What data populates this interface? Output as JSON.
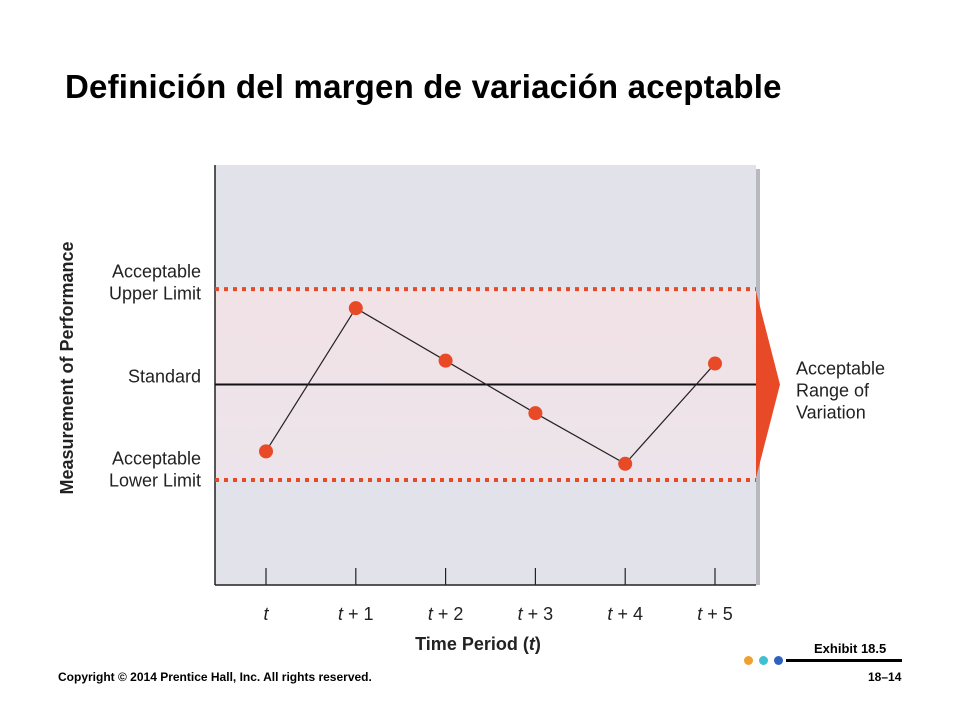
{
  "slide": {
    "title": "Definición del margen de variación aceptable",
    "copyright": "Copyright © 2014 Prentice Hall, Inc. All rights reserved.",
    "page_number": "18–14",
    "exhibit": "Exhibit 18.5",
    "dot_colors": [
      "#f0a030",
      "#40c0d0",
      "#3060c0"
    ]
  },
  "chart_data": {
    "type": "line",
    "ylabel": "Measurement of Performance",
    "xlabel_parts": [
      "Time Period (",
      "t",
      ")"
    ],
    "categories": [
      {
        "var": "t",
        "suffix": ""
      },
      {
        "var": "t",
        "suffix": " + 1"
      },
      {
        "var": "t",
        "suffix": " + 2"
      },
      {
        "var": "t",
        "suffix": " + 3"
      },
      {
        "var": "t",
        "suffix": " + 4"
      },
      {
        "var": "t",
        "suffix": " + 5"
      }
    ],
    "values": [
      -0.7,
      0.8,
      0.25,
      -0.3,
      -0.83,
      0.22
    ],
    "ylim": [
      -2.1,
      2.3
    ],
    "reference_lines": {
      "upper": 1.0,
      "standard": 0.0,
      "lower": -1.0
    },
    "y_labels": {
      "upper": [
        "Acceptable",
        "Upper Limit"
      ],
      "standard": [
        "Standard"
      ],
      "lower": [
        "Acceptable",
        "Lower Limit"
      ]
    },
    "range_label": [
      "Acceptable",
      "Range of",
      "Variation"
    ],
    "colors": {
      "marker": "#e84a27",
      "limit": "#e84a27",
      "plot_bg": "#e2e3ea",
      "band_bg": "#f0e0e4",
      "arrow": "#e84a27"
    }
  }
}
